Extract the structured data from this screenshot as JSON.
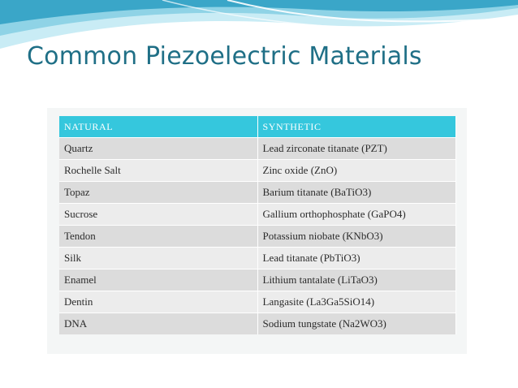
{
  "slide": {
    "title": "Common Piezoelectric Materials"
  },
  "table": {
    "headers": [
      "NATURAL",
      "SYNTHETIC"
    ],
    "rows": [
      [
        "Quartz",
        "Lead zirconate titanate (PZT)"
      ],
      [
        "Rochelle Salt",
        "Zinc oxide (ZnO)"
      ],
      [
        "Topaz",
        "Barium titanate (BaTiO3)"
      ],
      [
        "Sucrose",
        "Gallium orthophosphate (GaPO4)"
      ],
      [
        "Tendon",
        "Potassium niobate (KNbO3)"
      ],
      [
        "Silk",
        "Lead titanate (PbTiO3)"
      ],
      [
        "Enamel",
        "Lithium tantalate (LiTaO3)"
      ],
      [
        "Dentin",
        "Langasite (La3Ga5SiO14)"
      ],
      [
        "DNA",
        "Sodium tungstate (Na2WO3)"
      ]
    ]
  },
  "colors": {
    "title": "#1f6f86",
    "header_bg": "#35c7dd",
    "row_odd": "#dcdcdc",
    "row_even": "#ececec",
    "wave_dark": "#3aa6c8",
    "wave_light": "#bfe6f1"
  }
}
